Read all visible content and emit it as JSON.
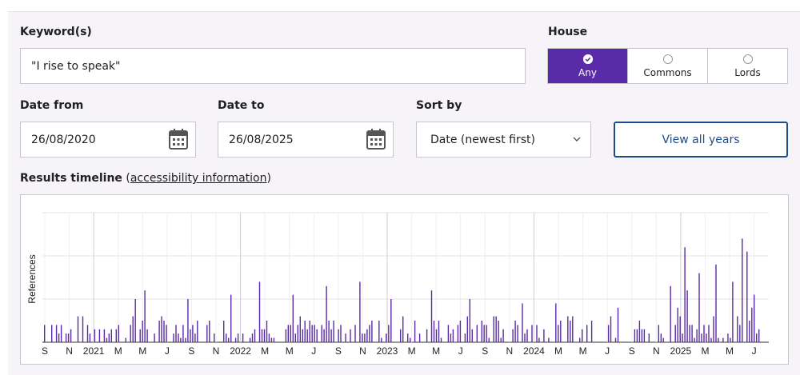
{
  "form": {
    "keyword_label": "Keyword(s)",
    "keyword_value": "\"I rise to speak\"",
    "house_label": "House",
    "house_options": [
      "Any",
      "Commons",
      "Lords"
    ],
    "house_selected": "Any",
    "date_from_label": "Date from",
    "date_from_value": "26/08/2020",
    "date_to_label": "Date to",
    "date_to_value": "26/08/2025",
    "sort_label": "Sort by",
    "sort_value": "Date (newest first)",
    "view_all_label": "View all years"
  },
  "timeline": {
    "heading": "Results timeline",
    "link_open": "(",
    "link_text": "accessibility information",
    "link_close": ")"
  },
  "colors": {
    "accent": "#5a2ba8",
    "button_border": "#1e4b8a",
    "bar": "#5a2ba8"
  },
  "chart_data": {
    "type": "bar",
    "title": "",
    "xlabel": "",
    "ylabel": "References",
    "ylim": [
      0,
      30
    ],
    "grid": true,
    "x_tick_labels": [
      "S",
      "N",
      "2021",
      "M",
      "M",
      "J",
      "S",
      "N",
      "2022",
      "M",
      "M",
      "J",
      "S",
      "N",
      "2023",
      "M",
      "M",
      "J",
      "S",
      "N",
      "2024",
      "M",
      "M",
      "J",
      "S",
      "N",
      "2025",
      "M",
      "M",
      "J"
    ],
    "x_range": [
      "2020-08-26",
      "2025-08-26"
    ],
    "bar_series_note": "daily reference counts",
    "x": [],
    "values": []
  }
}
